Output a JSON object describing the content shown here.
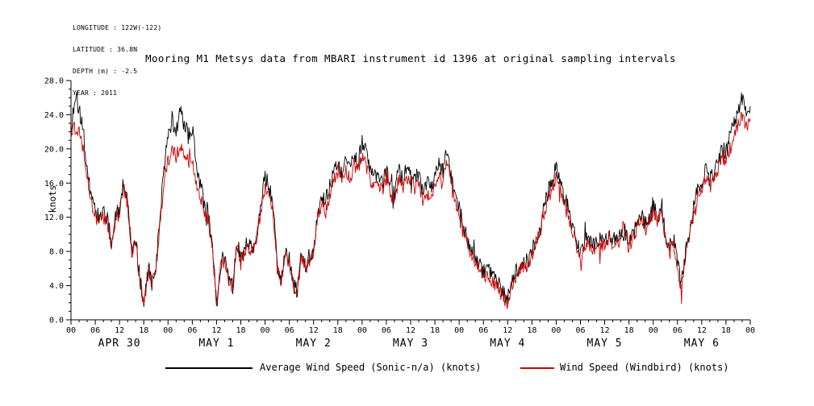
{
  "meta": {
    "longitude": "LONGITUDE : 122W(-122)",
    "latitude": "LATITUDE : 36.8N",
    "depth": "DEPTH (m) : -2.5",
    "year": "YEAR : 2011"
  },
  "title": "Mooring M1 Metsys data from MBARI instrument id 1396 at original sampling intervals",
  "chart_data": {
    "type": "line",
    "title": "Mooring M1 Metsys data from MBARI instrument id 1396 at original sampling intervals",
    "ylabel": "knots",
    "ylim": [
      0,
      28
    ],
    "ytick_values": [
      0,
      4,
      8,
      12,
      16,
      20,
      24,
      28
    ],
    "ytick_labels": [
      "0.0",
      "4.0",
      "8.0",
      "12.0",
      "16.0",
      "20.0",
      "24.0",
      "28.0"
    ],
    "xlim_hours": [
      0,
      168
    ],
    "x_unit": "hour of day, ticks every 6 h, Apr 30 - May 6 2011",
    "xtick_cycle": [
      "00",
      "06",
      "12",
      "18"
    ],
    "day_labels": [
      "APR 30",
      "MAY 1",
      "MAY 2",
      "MAY 3",
      "MAY 4",
      "MAY 5",
      "MAY 6"
    ],
    "grid": false,
    "legend_position": "bottom",
    "series": [
      {
        "name": "Average Wind Speed (Sonic-n/a) (knots)",
        "color": "#000000",
        "values": [
          22.5,
          26,
          24.5,
          22,
          18,
          14,
          12.5,
          12,
          12.5,
          12,
          9,
          12,
          13,
          16,
          14,
          8,
          9.5,
          5,
          2,
          6,
          5,
          6,
          12,
          18,
          21,
          23.5,
          22,
          24.5,
          23,
          21.5,
          22.5,
          18,
          16,
          13.5,
          12.5,
          8.5,
          2.5,
          6.5,
          7.5,
          5,
          4,
          9.5,
          7,
          8.5,
          9,
          8.5,
          10.5,
          14,
          17,
          15.5,
          13.5,
          6.5,
          5,
          8,
          7,
          4,
          3.5,
          8,
          6.5,
          7.5,
          8.5,
          12.5,
          14.5,
          14,
          15.5,
          17.5,
          18,
          17,
          18.5,
          17.5,
          19,
          18.5,
          21,
          19.5,
          17.5,
          16.5,
          17,
          16,
          17.5,
          16,
          14.5,
          17.5,
          16.5,
          17.5,
          17,
          16.5,
          17,
          15.5,
          16,
          15.5,
          17,
          18,
          17.5,
          20,
          17,
          14.5,
          13,
          11,
          9.5,
          8,
          7.5,
          6.5,
          5.5,
          6,
          5,
          4.5,
          4,
          3,
          2.5,
          4.5,
          5.5,
          6,
          7,
          6.5,
          8,
          9.5,
          11,
          13,
          15,
          16.5,
          18,
          16,
          14.5,
          13,
          11,
          9.5,
          7.5,
          9,
          9.5,
          8.5,
          9,
          9.5,
          9,
          10,
          9.5,
          10,
          9.5,
          10.5,
          9,
          10,
          11,
          12.5,
          11,
          12,
          13.5,
          12,
          13,
          10,
          8.5,
          9.5,
          6.5,
          4,
          8,
          10,
          13,
          15.5,
          16,
          17.5,
          16.5,
          17,
          18.5,
          20,
          19.5,
          21.5,
          23,
          24.5,
          26,
          24,
          25
        ]
      },
      {
        "name": "Wind Speed (Windbird) (knots)",
        "color": "#cc0000",
        "values": [
          21.5,
          22.5,
          22,
          20,
          16.5,
          13.5,
          12,
          11.5,
          12,
          11.5,
          8.5,
          11.5,
          12.5,
          15.5,
          13.5,
          7.5,
          9,
          4.5,
          1.5,
          5.5,
          4.5,
          5.5,
          11,
          16.5,
          18.5,
          20,
          19,
          20.5,
          19.5,
          18.5,
          19,
          16,
          14.5,
          12.5,
          11.5,
          8,
          2,
          6,
          7,
          4.5,
          3.5,
          9,
          6.5,
          8,
          8.5,
          8,
          10,
          13,
          15.5,
          14.5,
          12.5,
          6,
          4.5,
          7.5,
          6.5,
          3.5,
          3,
          7.5,
          6,
          7,
          8,
          12,
          13.5,
          13,
          14.5,
          16.5,
          17,
          16,
          17.5,
          16.5,
          18,
          17.5,
          19,
          18,
          16.5,
          15.5,
          16,
          15,
          16.5,
          15,
          13.5,
          16.5,
          15.5,
          16.5,
          16,
          15.5,
          16,
          14,
          14.5,
          14.5,
          15.5,
          16.5,
          16.5,
          18.5,
          16,
          13.5,
          12.5,
          10.5,
          9,
          7.5,
          7,
          6,
          5,
          5.5,
          4.5,
          4,
          3.5,
          2.5,
          2,
          4,
          5,
          5.5,
          6.5,
          6,
          7.5,
          9,
          10.5,
          12.5,
          14,
          15.5,
          16.5,
          15,
          13.5,
          12,
          10.5,
          9,
          7,
          8.5,
          9,
          8,
          8.5,
          9,
          8.5,
          9.5,
          9,
          9.5,
          9,
          10,
          8.5,
          9.5,
          10.5,
          12,
          10.5,
          11.5,
          13,
          11.5,
          12.5,
          9.5,
          8,
          9,
          6,
          3.5,
          7.5,
          9.5,
          12.5,
          14.5,
          15,
          16.5,
          15.5,
          16,
          17.5,
          19,
          18.5,
          20,
          21.5,
          23,
          24,
          22.5,
          23.5
        ]
      }
    ]
  },
  "legend": {
    "items": [
      {
        "label": "Average Wind Speed (Sonic-n/a) (knots)",
        "color": "#000000"
      },
      {
        "label": "Wind Speed (Windbird) (knots)",
        "color": "#cc0000"
      }
    ]
  }
}
